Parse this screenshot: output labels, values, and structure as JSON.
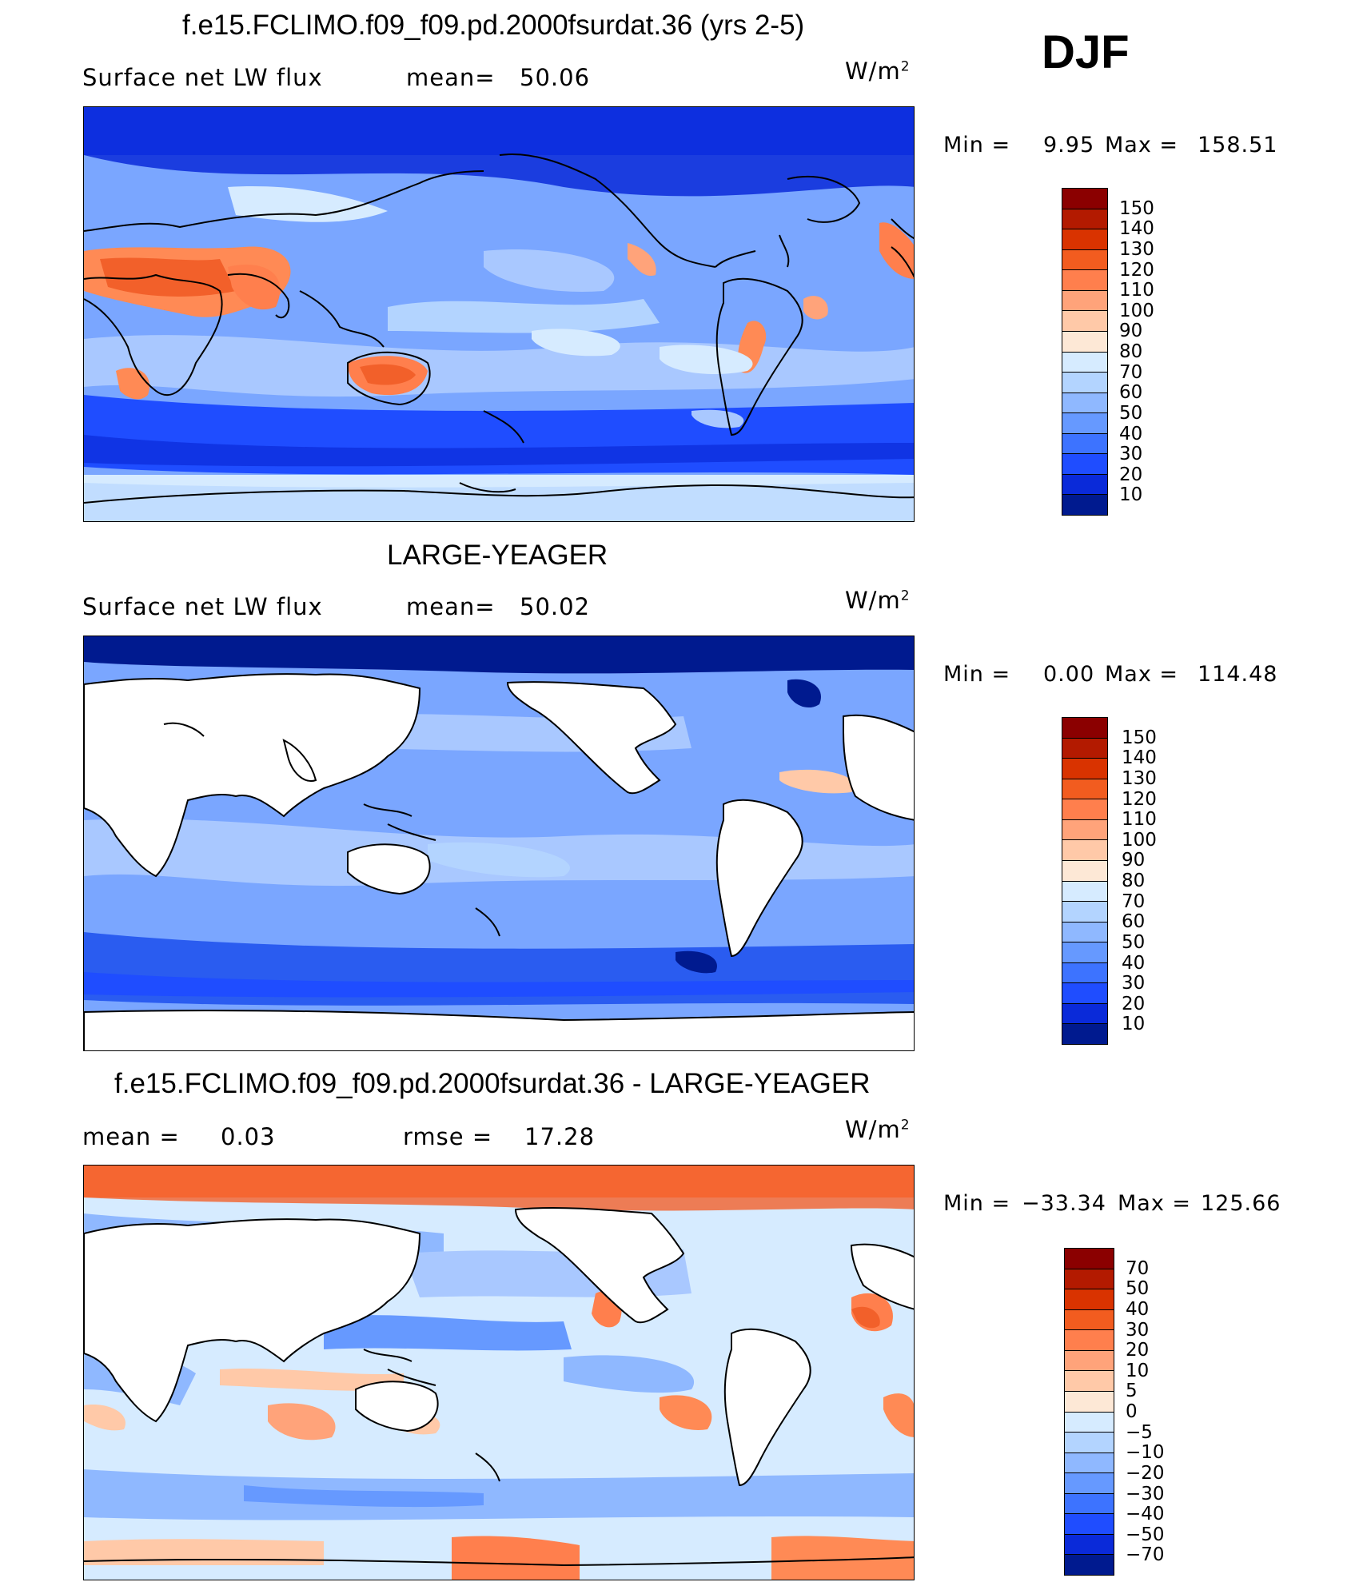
{
  "season": "DJF",
  "panels": [
    {
      "title": "f.e15.FCLIMO.f09_f09.pd.2000fsurdat.36 (yrs 2-5)",
      "variable": "Surface net LW flux",
      "stat_left": "mean=",
      "stat_left_value": "50.06",
      "stat_right": "",
      "stat_right_value": "",
      "units": "W/m",
      "units_sup": "2",
      "min_label": "Min =",
      "min_value": "9.95",
      "max_label": "Max =",
      "max_value": "158.51",
      "colorbar_labels": [
        "150",
        "140",
        "130",
        "120",
        "110",
        "100",
        "90",
        "80",
        "70",
        "60",
        "50",
        "40",
        "30",
        "20",
        "10"
      ],
      "colorbar_colors": [
        "#8b0000",
        "#b31a00",
        "#d93300",
        "#f25c1f",
        "#ff7f4d",
        "#ffa37a",
        "#ffc9a8",
        "#fde8d6",
        "#d6ebff",
        "#b3d4ff",
        "#8fb8ff",
        "#6699ff",
        "#3d73ff",
        "#1f4dff",
        "#0a2ad9",
        "#001a8f"
      ]
    },
    {
      "title": "LARGE-YEAGER",
      "variable": "Surface net LW flux",
      "stat_left": "mean=",
      "stat_left_value": "50.02",
      "stat_right": "",
      "stat_right_value": "",
      "units": "W/m",
      "units_sup": "2",
      "min_label": "Min =",
      "min_value": "0.00",
      "max_label": "Max =",
      "max_value": "114.48",
      "colorbar_labels": [
        "150",
        "140",
        "130",
        "120",
        "110",
        "100",
        "90",
        "80",
        "70",
        "60",
        "50",
        "40",
        "30",
        "20",
        "10"
      ],
      "colorbar_colors": [
        "#8b0000",
        "#b31a00",
        "#d93300",
        "#f25c1f",
        "#ff7f4d",
        "#ffa37a",
        "#ffc9a8",
        "#fde8d6",
        "#d6ebff",
        "#b3d4ff",
        "#8fb8ff",
        "#6699ff",
        "#3d73ff",
        "#1f4dff",
        "#0a2ad9",
        "#001a8f"
      ]
    },
    {
      "title": "f.e15.FCLIMO.f09_f09.pd.2000fsurdat.36 - LARGE-YEAGER",
      "variable": "",
      "stat_left": "mean =",
      "stat_left_value": "0.03",
      "stat_right": "rmse =",
      "stat_right_value": "17.28",
      "units": "W/m",
      "units_sup": "2",
      "min_label": "Min =",
      "min_value": "−33.34",
      "max_label": "Max =",
      "max_value": "125.66",
      "colorbar_labels": [
        "70",
        "50",
        "40",
        "30",
        "20",
        "10",
        "5",
        "0",
        "−5",
        "−10",
        "−20",
        "−30",
        "−40",
        "−50",
        "−70"
      ],
      "colorbar_colors": [
        "#8b0000",
        "#b31a00",
        "#d93300",
        "#f25c1f",
        "#ff7f4d",
        "#ffa37a",
        "#ffc9a8",
        "#fde8d6",
        "#d6ebff",
        "#b3d4ff",
        "#8fb8ff",
        "#6699ff",
        "#3d73ff",
        "#1f4dff",
        "#0a2ad9",
        "#001a8f"
      ]
    }
  ],
  "palette": {
    "ocean_light": "#a9c8ff",
    "ocean_mid": "#7aa6ff",
    "ocean_dark": "#2a5cf0",
    "ocean_deep": "#0a2ad9",
    "warm_light": "#ffd2b8",
    "warm_mid": "#ff8a55",
    "warm_strong": "#f2602a",
    "land_white": "#ffffff"
  }
}
